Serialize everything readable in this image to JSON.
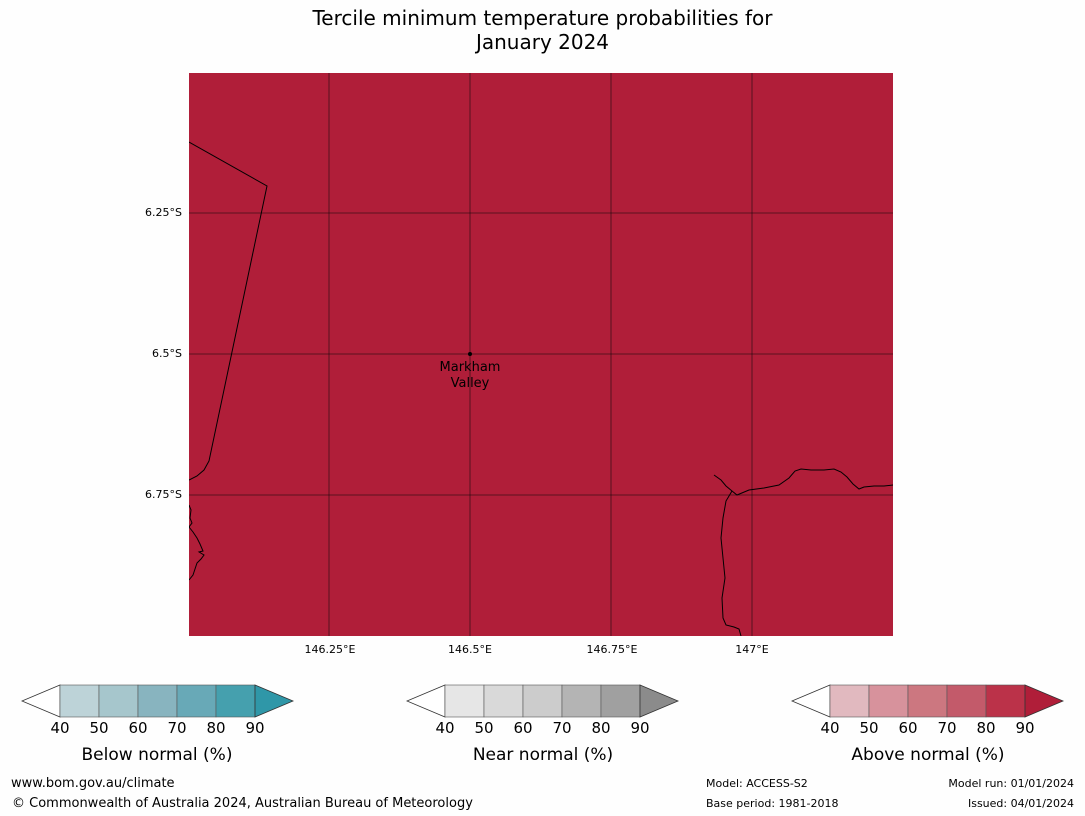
{
  "title": {
    "line1": "Tercile minimum temperature probabilities for",
    "line2": "January 2024"
  },
  "map": {
    "fill_color": "#b01e39",
    "lat_labels": [
      "6.25°S",
      "6.5°S",
      "6.75°S"
    ],
    "lon_labels": [
      "146.25°E",
      "146.5°E",
      "146.75°E",
      "147°E"
    ],
    "place": {
      "line1": "Markham",
      "line2": "Valley"
    }
  },
  "colorbars": [
    {
      "label": "Below normal (%)",
      "ticks": [
        "40",
        "50",
        "60",
        "70",
        "80",
        "90"
      ],
      "colors": [
        "#ffffff",
        "#bdd3d8",
        "#a6c6cc",
        "#88b4bf",
        "#68a9b7",
        "#45a0ae",
        "#2f97a8"
      ]
    },
    {
      "label": "Near normal (%)",
      "ticks": [
        "40",
        "50",
        "60",
        "70",
        "80",
        "90"
      ],
      "colors": [
        "#ffffff",
        "#e6e6e6",
        "#d9d9d9",
        "#cccccc",
        "#b4b4b4",
        "#a0a0a0",
        "#8b8b8b"
      ]
    },
    {
      "label": "Above normal (%)",
      "ticks": [
        "40",
        "50",
        "60",
        "70",
        "80",
        "90"
      ],
      "colors": [
        "#ffffff",
        "#e1b9bf",
        "#d7929c",
        "#cc7780",
        "#c35a6a",
        "#bb3249",
        "#b01e39"
      ]
    }
  ],
  "footer": {
    "website": "www.bom.gov.au/climate",
    "copyright": "© Commonwealth of Australia 2024, Australian Bureau of Meteorology",
    "model": "Model: ACCESS-S2",
    "base_period": "Base period: 1981-2018",
    "model_run": "Model run: 01/01/2024",
    "issued": "Issued: 04/01/2024"
  }
}
